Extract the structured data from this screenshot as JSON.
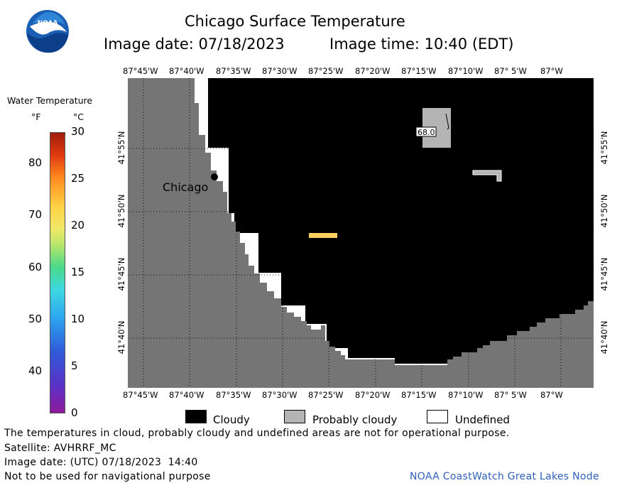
{
  "header": {
    "title": "Chicago Surface Temperature",
    "image_date": "Image date: 07/18/2023",
    "image_time": "Image time: 10:40 (EDT)"
  },
  "logo": {
    "text": "NOAA"
  },
  "colorbar": {
    "title": "Water Temperature",
    "unit_f": "°F",
    "unit_c": "°C",
    "f_ticks": [
      "80",
      "70",
      "60",
      "50",
      "40"
    ],
    "c_ticks": [
      "30",
      "25",
      "20",
      "15",
      "10",
      "5",
      "0"
    ],
    "c_range": [
      0,
      30
    ]
  },
  "map": {
    "lon_labels": [
      "87°45'W",
      "87°40'W",
      "87°35'W",
      "87°30'W",
      "87°25'W",
      "87°20'W",
      "87°15'W",
      "87°10'W",
      "87° 5'W",
      "87°W"
    ],
    "lat_labels": [
      "41°55'N",
      "41°50'N",
      "41°45'N",
      "41°40'N"
    ],
    "city_label": "Chicago",
    "reading": "68.0",
    "colors": {
      "land": "#757575",
      "cloudy": "#000000",
      "probably_cloudy": "#b4b4b4",
      "undefined": "#ffffff",
      "warm_pixel": "#ffd060"
    }
  },
  "legend": {
    "cloudy": "Cloudy",
    "probably_cloudy": "Probably cloudy",
    "undefined": "Undefined"
  },
  "footer": {
    "note": "The temperatures in cloud, probably cloudy and undefined areas are not for operational purpose.",
    "satellite": "Satellite: AVHRRF_MC",
    "utc_date": "Image date: (UTC) 07/18/2023  14:40",
    "nav": "Not to be used for navigational purpose",
    "credit": "NOAA CoastWatch Great Lakes Node"
  }
}
